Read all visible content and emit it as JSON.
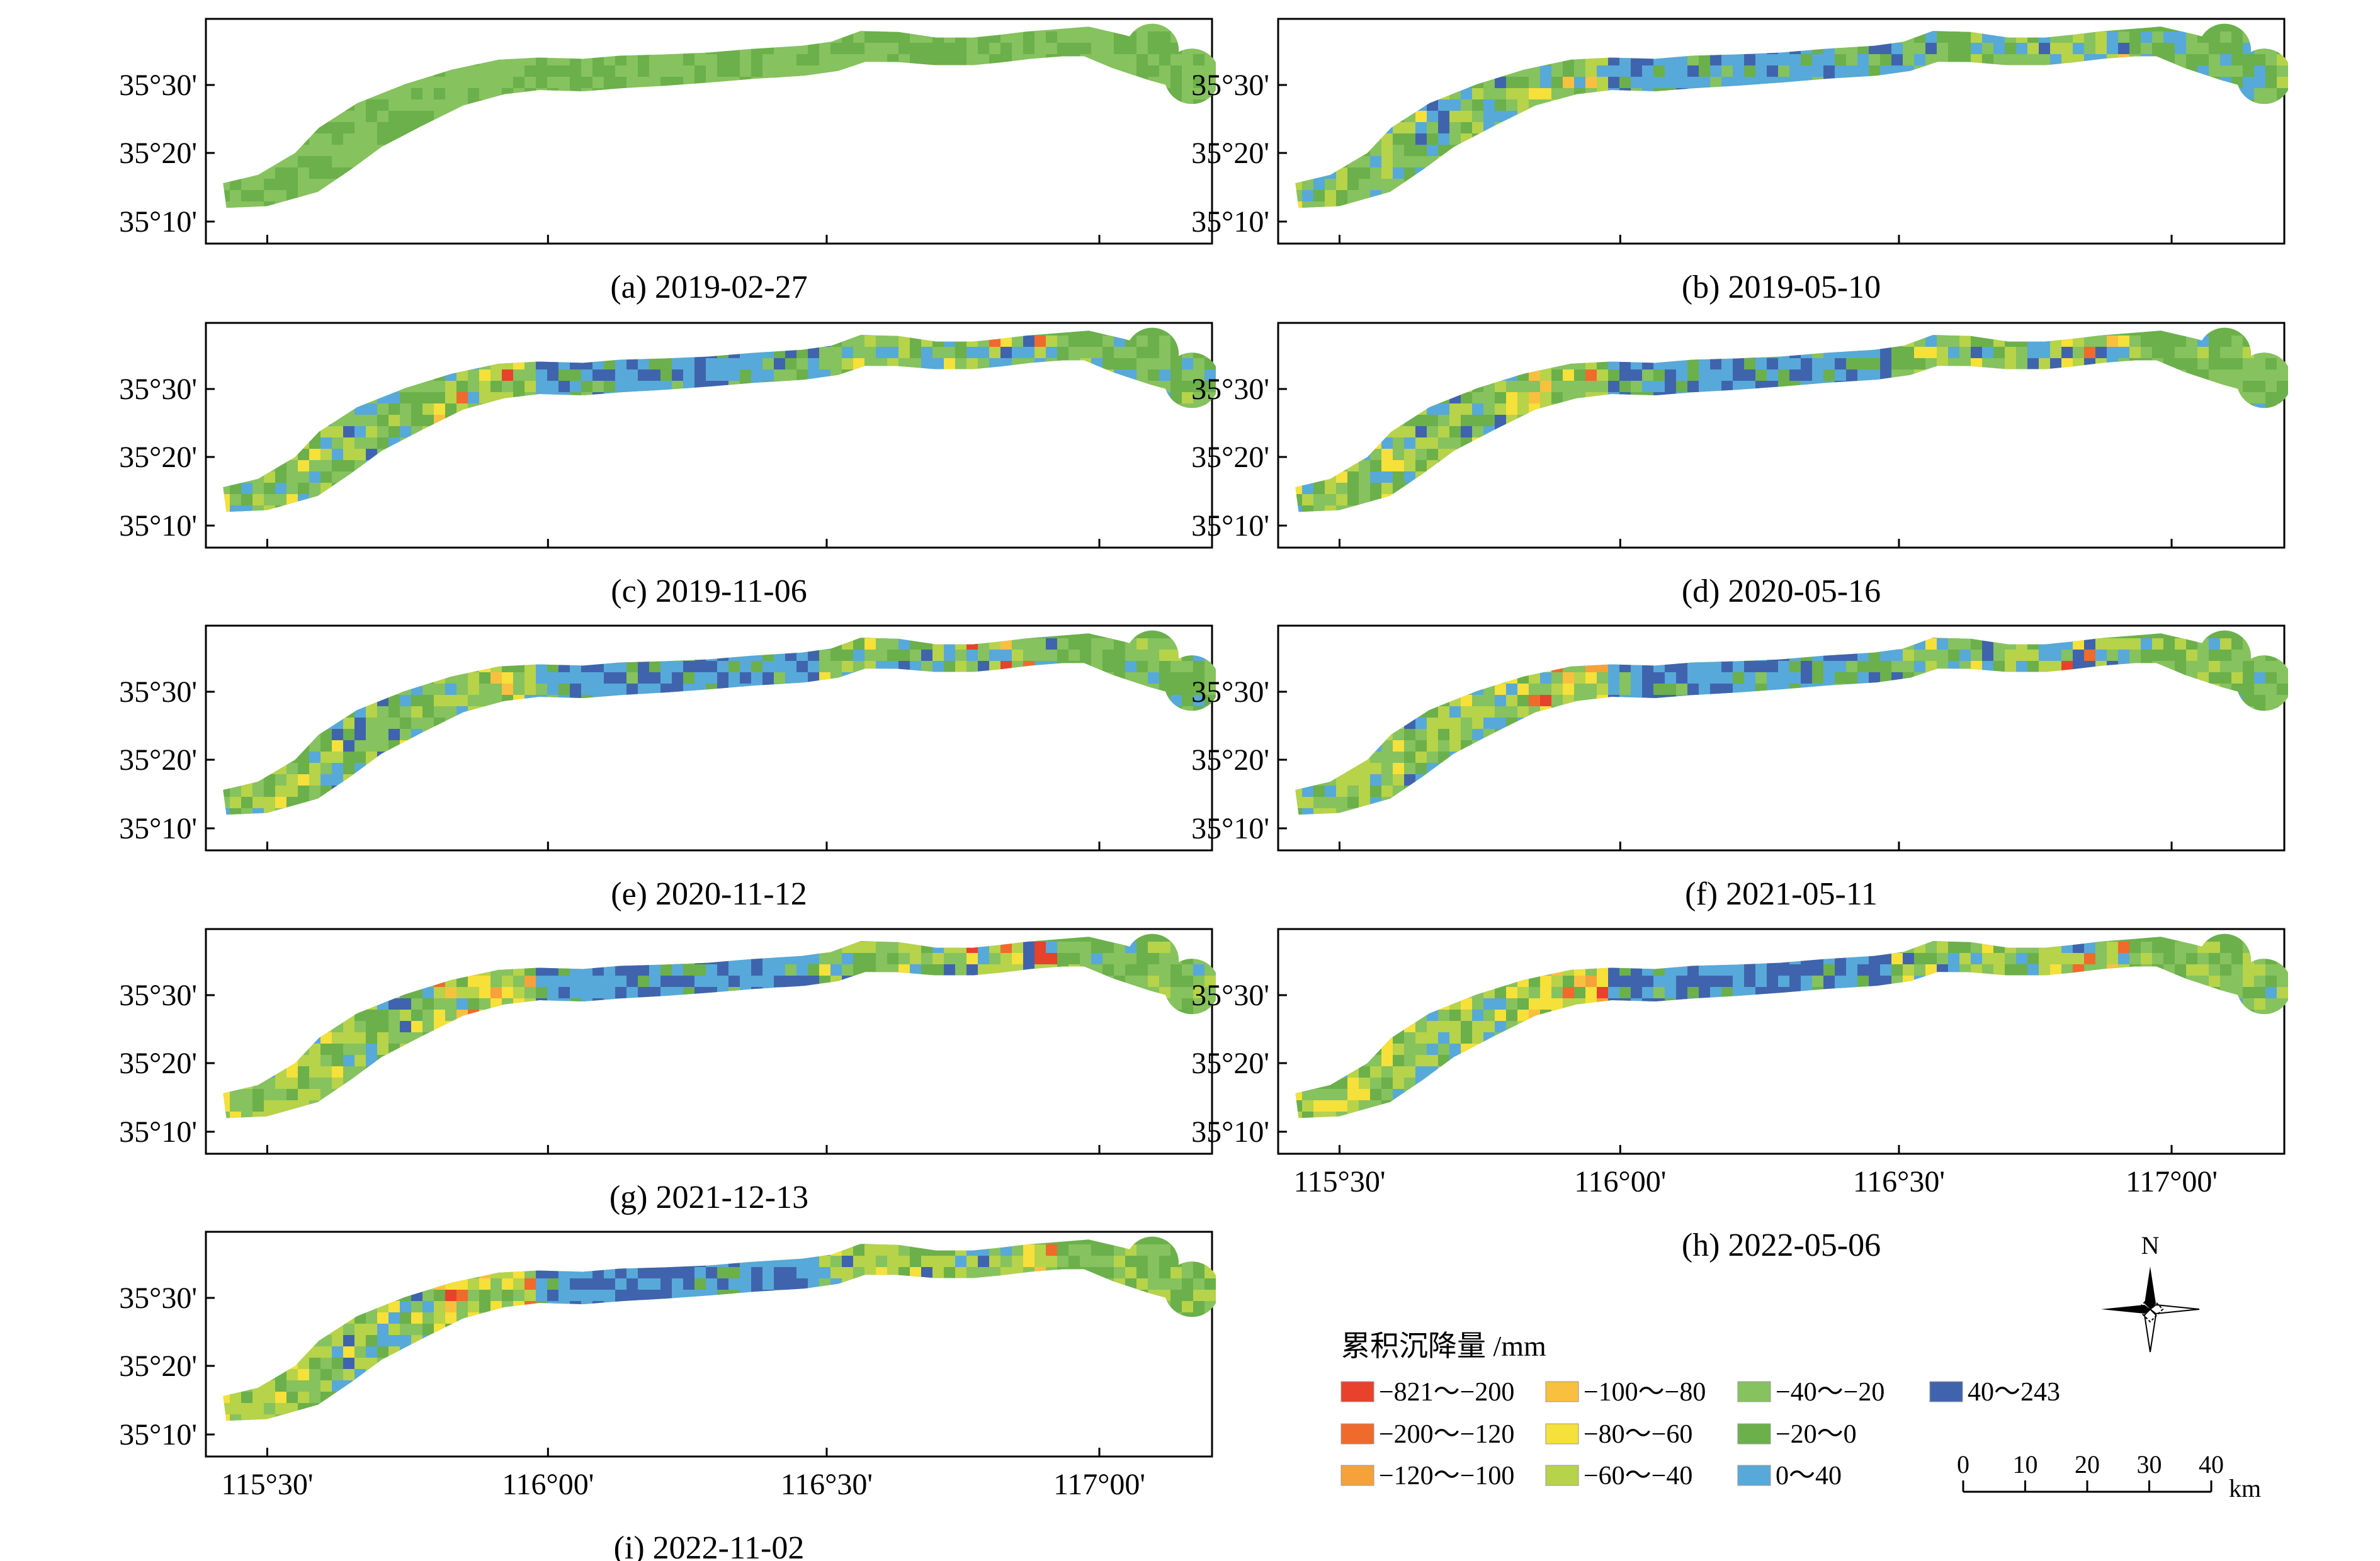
{
  "figure": {
    "panels": [
      {
        "id": "a",
        "caption": "(a) 2019-02-27",
        "stage": 0
      },
      {
        "id": "b",
        "caption": "(b) 2019-05-10",
        "stage": 1
      },
      {
        "id": "c",
        "caption": "(c) 2019-11-06",
        "stage": 2
      },
      {
        "id": "d",
        "caption": "(d) 2020-05-16",
        "stage": 3
      },
      {
        "id": "e",
        "caption": "(e) 2020-11-12",
        "stage": 4
      },
      {
        "id": "f",
        "caption": "(f) 2021-05-11",
        "stage": 5
      },
      {
        "id": "g",
        "caption": "(g) 2021-12-13",
        "stage": 6
      },
      {
        "id": "h",
        "caption": "(h) 2022-05-06",
        "stage": 7
      },
      {
        "id": "i",
        "caption": "(i) 2022-11-02",
        "stage": 8
      }
    ],
    "lat_ticks": [
      "35°30'",
      "35°20'",
      "35°10'"
    ],
    "lon_ticks": [
      "115°30'",
      "116°00'",
      "116°30'",
      "117°00'"
    ],
    "legend": {
      "title": "累积沉降量 /mm",
      "classes": [
        {
          "label": "−821～−200",
          "color": "#e8412c"
        },
        {
          "label": "−200～−120",
          "color": "#f06a2b"
        },
        {
          "label": "−120～−100",
          "color": "#f5a23a"
        },
        {
          "label": "−100～−80",
          "color": "#f9c03f"
        },
        {
          "label": "−80～−60",
          "color": "#f6e03a"
        },
        {
          "label": "−60～−40",
          "color": "#b6d34a"
        },
        {
          "label": "−40～−20",
          "color": "#86c25e"
        },
        {
          "label": "−20～0",
          "color": "#6bb04a"
        },
        {
          "label": "0～40",
          "color": "#57a9d9"
        },
        {
          "label": "40～243",
          "color": "#3f64ad"
        }
      ]
    },
    "north_arrow": {
      "label": "N"
    },
    "scale_bar": {
      "ticks": [
        "0",
        "10",
        "20",
        "30",
        "40"
      ],
      "unit": "km"
    }
  }
}
